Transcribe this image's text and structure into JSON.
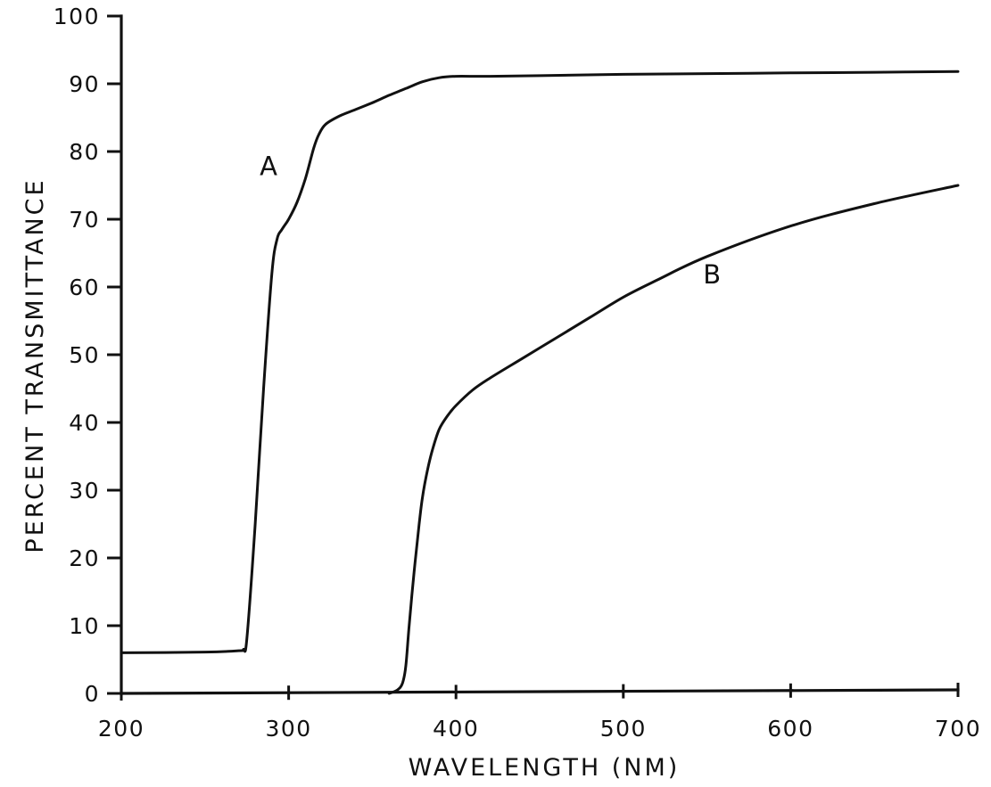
{
  "chart_data": {
    "type": "line",
    "title": "",
    "xlabel": "WAVELENGTH (NM)",
    "ylabel": "PERCENT TRANSMITTANCE",
    "xlim": [
      200,
      700
    ],
    "ylim": [
      0,
      100
    ],
    "x_ticks": [
      200,
      300,
      400,
      500,
      600,
      700
    ],
    "y_ticks": [
      0,
      10,
      20,
      30,
      40,
      50,
      60,
      70,
      80,
      90,
      100
    ],
    "x_tick_labels": [
      "200",
      "300",
      "400",
      "500",
      "600",
      "700"
    ],
    "y_tick_labels": [
      "0",
      "10",
      "20",
      "30",
      "40",
      "50",
      "60",
      "70",
      "80",
      "90",
      "100"
    ],
    "grid": false,
    "legend": "none",
    "series": [
      {
        "name": "A",
        "color": "#111111",
        "x": [
          200,
          250,
          270,
          273,
          275,
          280,
          285,
          290,
          293,
          296,
          300,
          305,
          310,
          315,
          318,
          322,
          330,
          340,
          350,
          360,
          370,
          380,
          390,
          400,
          420,
          450,
          500,
          550,
          600,
          650,
          700
        ],
        "y": [
          6.0,
          6.1,
          6.3,
          6.5,
          8,
          25,
          45,
          62,
          67,
          68.5,
          70,
          72.5,
          76,
          80.5,
          82.5,
          84,
          85.2,
          86.2,
          87.2,
          88.3,
          89.3,
          90.3,
          90.9,
          91.1,
          91.1,
          91.2,
          91.4,
          91.5,
          91.6,
          91.7,
          91.8
        ]
      },
      {
        "name": "B",
        "color": "#111111",
        "x": [
          360,
          365,
          368,
          370,
          372,
          375,
          378,
          380,
          383,
          386,
          390,
          395,
          400,
          410,
          420,
          440,
          460,
          480,
          500,
          520,
          550,
          600,
          650,
          700
        ],
        "y": [
          0,
          0.5,
          1.5,
          4,
          10,
          18,
          25,
          29,
          33,
          36,
          39,
          41,
          42.5,
          44.8,
          46.5,
          49.5,
          52.5,
          55.5,
          58.5,
          61,
          64.5,
          69,
          72.3,
          75
        ]
      }
    ],
    "annotations": [
      {
        "text": "A",
        "x": 288,
        "y": 76.5
      },
      {
        "text": "B",
        "x": 553,
        "y": 60.5
      }
    ]
  }
}
